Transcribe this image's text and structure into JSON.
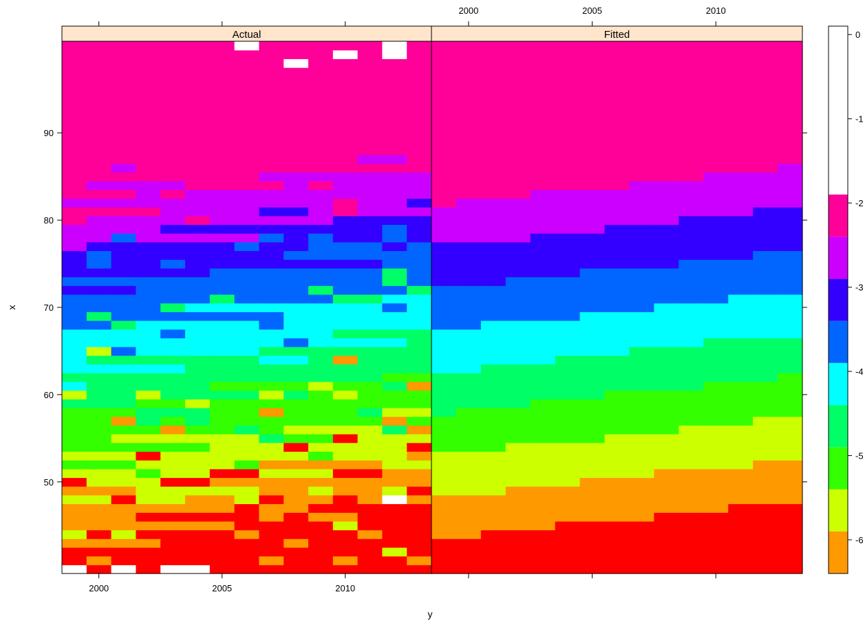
{
  "chart_data": {
    "type": "heatmap",
    "xlabel": "y",
    "ylabel": "x",
    "panels": [
      {
        "name": "Actual"
      },
      {
        "name": "Fitted"
      }
    ],
    "xlim": [
      1998.5,
      2013.5
    ],
    "ylim": [
      39.5,
      100.5
    ],
    "x_ticks": [
      2000,
      2005,
      2010
    ],
    "y_ticks": [
      50,
      60,
      70,
      80,
      90
    ],
    "x": [
      1999,
      2000,
      2001,
      2002,
      2003,
      2004,
      2005,
      2006,
      2007,
      2008,
      2009,
      2010,
      2011,
      2012,
      2013
    ],
    "y_start": 40,
    "y_end": 100,
    "colorkey": {
      "ticks": [
        0,
        -1,
        -2,
        -3,
        -4,
        -5,
        -6
      ],
      "tick_labels": [
        "0",
        "-1",
        "-2",
        "-3",
        "-4",
        "-5",
        "-6"
      ],
      "breaks": [
        -6.4,
        -5.9,
        -5.4,
        -4.9,
        -4.4,
        -3.9,
        -3.4,
        -2.9,
        -2.4,
        -1.9,
        -1.4,
        -0.9,
        -0.4,
        0.1
      ],
      "colors": [
        "#FF9900",
        "#CCFF00",
        "#33FF00",
        "#00FF66",
        "#00FFFF",
        "#0066FF",
        "#3300FF",
        "#CC00FF",
        "#FF0099"
      ]
    },
    "colors": {
      "band_-6.5": "#FF0000",
      "missing": "#FFFFFF",
      "strip": "#FFE5CC"
    },
    "actual_missing": [
      [
        1999,
        40
      ],
      [
        2001,
        40
      ],
      [
        2003,
        40
      ],
      [
        2004,
        40
      ],
      [
        2006,
        100
      ],
      [
        2008,
        98
      ],
      [
        2010,
        99
      ],
      [
        2012,
        99
      ],
      [
        2012,
        100
      ],
      [
        2012,
        48
      ]
    ],
    "actual_swaps": [
      [
        1999,
        99,
        -1.6
      ],
      [
        2002,
        99,
        -1.6
      ],
      [
        2004,
        99,
        -1.6
      ],
      [
        2001,
        100,
        -1.2
      ],
      [
        2001,
        99,
        -1.2
      ],
      [
        2003,
        98,
        -1.2
      ],
      [
        2007,
        99,
        -1.2
      ],
      [
        2009,
        98,
        -1.2
      ],
      [
        2013,
        98,
        -1.2
      ],
      [
        2000,
        98,
        -1.6
      ],
      [
        2007,
        97,
        -1.6
      ],
      [
        2008,
        96,
        -1.2
      ],
      [
        2013,
        97,
        -1.6
      ],
      [
        1999,
        95,
        -1.2
      ],
      [
        2001,
        94,
        -1.2
      ],
      [
        2004,
        93,
        -1.2
      ],
      [
        2008,
        92,
        -1.2
      ],
      [
        2010,
        91,
        -1.2
      ],
      [
        2011,
        95,
        -1.2
      ],
      [
        2006,
        91,
        -1.6
      ],
      [
        2007,
        89,
        -1.6
      ],
      [
        2008,
        90,
        -1.6
      ],
      [
        2009,
        89,
        -1.6
      ],
      [
        2010,
        91,
        -1.6
      ],
      [
        2001,
        89,
        -1.6
      ],
      [
        2005,
        90,
        -1.6
      ],
      [
        2005,
        89,
        -1.6
      ],
      [
        1999,
        88,
        -1.6
      ],
      [
        1999,
        87,
        -1.2
      ],
      [
        1999,
        86,
        -1.2
      ],
      [
        2003,
        86,
        -1.2
      ],
      [
        2004,
        87,
        -1.2
      ],
      [
        2013,
        87,
        -1.2
      ],
      [
        2001,
        86,
        -2.7
      ],
      [
        2000,
        84,
        -2.7
      ],
      [
        2002,
        83,
        -2.7
      ],
      [
        2008,
        84,
        -2.7
      ],
      [
        2010,
        84,
        -2.7
      ],
      [
        2002,
        81,
        -2.1
      ],
      [
        2004,
        80,
        -2.1
      ],
      [
        1999,
        80,
        -2.1
      ],
      [
        2001,
        81,
        -2.1
      ],
      [
        2010,
        82,
        -2.1
      ],
      [
        2010,
        81,
        -2.1
      ],
      [
        2001,
        78,
        -3.7
      ],
      [
        2000,
        76,
        -3.7
      ],
      [
        2000,
        75,
        -3.7
      ],
      [
        2006,
        77,
        -3.7
      ],
      [
        2007,
        78,
        -3.7
      ],
      [
        2008,
        76,
        -3.7
      ],
      [
        2009,
        77,
        -3.7
      ],
      [
        2009,
        78,
        -3.7
      ],
      [
        2010,
        77,
        -3.7
      ],
      [
        2011,
        77,
        -3.7
      ],
      [
        2012,
        78,
        -3.7
      ],
      [
        2012,
        79,
        -3.7
      ],
      [
        2013,
        77,
        -3.7
      ],
      [
        1999,
        74,
        -3.2
      ],
      [
        2004,
        75,
        -3.2
      ],
      [
        2000,
        69,
        -4.7
      ],
      [
        2001,
        68,
        -4.7
      ],
      [
        2003,
        70,
        -4.7
      ],
      [
        2005,
        71,
        -4.7
      ],
      [
        2009,
        72,
        -4.7
      ],
      [
        2010,
        71,
        -4.7
      ],
      [
        2011,
        71,
        -4.7
      ],
      [
        2012,
        73,
        -4.7
      ],
      [
        2012,
        74,
        -4.7
      ],
      [
        2013,
        72,
        -4.7
      ],
      [
        2001,
        65,
        -3.7
      ],
      [
        2008,
        66,
        -3.7
      ],
      [
        2006,
        69,
        -3.7
      ],
      [
        2007,
        68,
        -3.7
      ],
      [
        2000,
        65,
        -5.7
      ],
      [
        2010,
        64,
        -6.2
      ],
      [
        2013,
        61,
        -6.2
      ],
      [
        2002,
        60,
        -5.7
      ],
      [
        1999,
        60,
        -5.7
      ],
      [
        2004,
        59,
        -5.7
      ],
      [
        2007,
        60,
        -5.7
      ],
      [
        2009,
        61,
        -5.7
      ],
      [
        2010,
        60,
        -5.7
      ],
      [
        2002,
        57,
        -4.7
      ],
      [
        2004,
        57,
        -4.7
      ],
      [
        2006,
        56,
        -4.7
      ],
      [
        2007,
        55,
        -4.7
      ],
      [
        2011,
        58,
        -4.7
      ],
      [
        2012,
        56,
        -4.7
      ],
      [
        2001,
        57,
        -6.2
      ],
      [
        2003,
        56,
        -6.2
      ],
      [
        2007,
        58,
        -6.2
      ],
      [
        2012,
        57,
        -6.2
      ],
      [
        2013,
        56,
        -6.2
      ],
      [
        2002,
        53,
        -6.5
      ],
      [
        2008,
        54,
        -6.5
      ],
      [
        2010,
        55,
        -6.5
      ],
      [
        2011,
        51,
        -6.5
      ],
      [
        2013,
        54,
        -6.5
      ],
      [
        2005,
        51,
        -6.5
      ],
      [
        2006,
        51,
        -6.5
      ],
      [
        2003,
        50,
        -6.5
      ],
      [
        2004,
        50,
        -6.5
      ],
      [
        1999,
        50,
        -6.5
      ],
      [
        2010,
        51,
        -6.5
      ],
      [
        2001,
        52,
        -5.2
      ],
      [
        2002,
        51,
        -5.2
      ],
      [
        2006,
        52,
        -5.2
      ],
      [
        2009,
        53,
        -5.2
      ],
      [
        2002,
        48,
        -5.7
      ],
      [
        2003,
        48,
        -5.7
      ],
      [
        2006,
        48,
        -5.7
      ],
      [
        2009,
        49,
        -5.7
      ],
      [
        2012,
        49,
        -5.7
      ],
      [
        2001,
        48,
        -6.5
      ],
      [
        2006,
        47,
        -6.5
      ],
      [
        2007,
        48,
        -6.5
      ],
      [
        2010,
        48,
        -6.5
      ],
      [
        2002,
        46,
        -6.5
      ],
      [
        2008,
        46,
        -6.5
      ],
      [
        2004,
        46,
        -6.5
      ],
      [
        2011,
        46,
        -6.5
      ],
      [
        2012,
        45,
        -6.5
      ],
      [
        1999,
        44,
        -5.7
      ],
      [
        2001,
        44,
        -5.7
      ],
      [
        2012,
        42,
        -5.7
      ],
      [
        2010,
        45,
        -5.7
      ],
      [
        2000,
        41,
        -6.2
      ],
      [
        2007,
        41,
        -6.2
      ],
      [
        2010,
        41,
        -6.2
      ],
      [
        2013,
        41,
        -6.2
      ],
      [
        2005,
        45,
        -6.2
      ],
      [
        2006,
        44,
        -6.2
      ],
      [
        2008,
        43,
        -6.2
      ],
      [
        2011,
        44,
        -6.2
      ]
    ]
  }
}
